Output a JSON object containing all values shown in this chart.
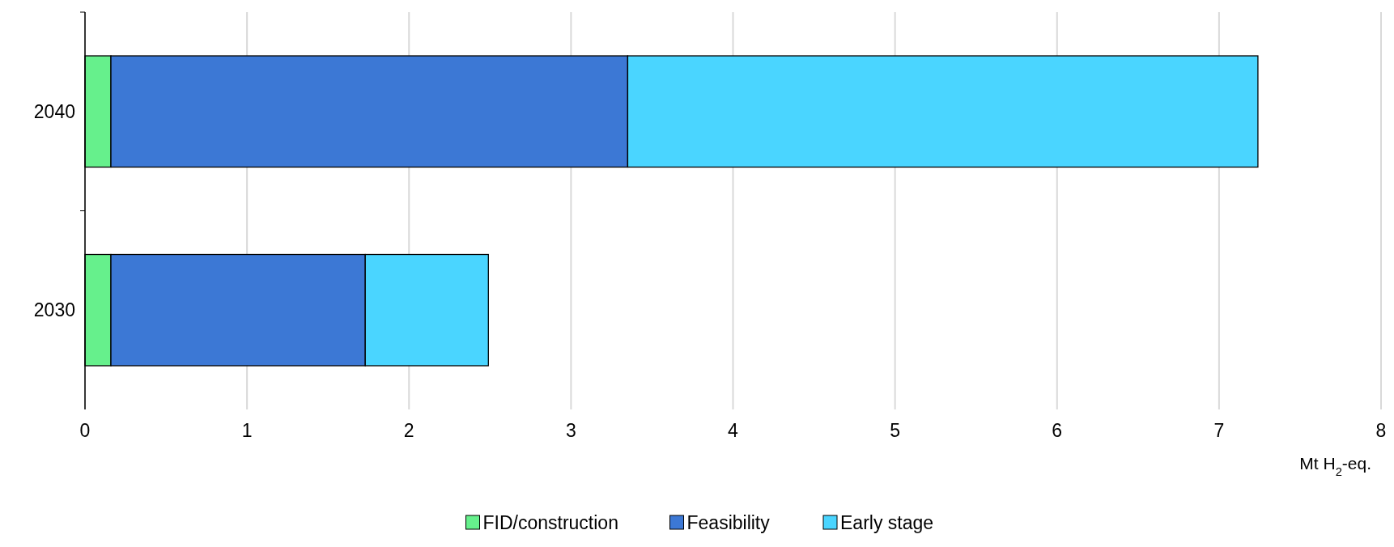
{
  "chart_data": {
    "type": "bar",
    "orientation": "horizontal",
    "stacked": true,
    "categories": [
      "2040",
      "2030"
    ],
    "series": [
      {
        "name": "FID/construction",
        "color": "#66f08c",
        "values": [
          0.16,
          0.16
        ]
      },
      {
        "name": "Feasibility",
        "color": "#3c78d5",
        "values": [
          3.19,
          1.57
        ]
      },
      {
        "name": "Early stage",
        "color": "#4ad5ff",
        "values": [
          3.89,
          0.76
        ]
      }
    ],
    "xlim": [
      0,
      8
    ],
    "xticks": [
      0,
      1,
      2,
      3,
      4,
      5,
      6,
      7,
      8
    ],
    "xlabel": "Mt H$_{2}$-eq.",
    "grid": "x",
    "legend": "bottom"
  }
}
